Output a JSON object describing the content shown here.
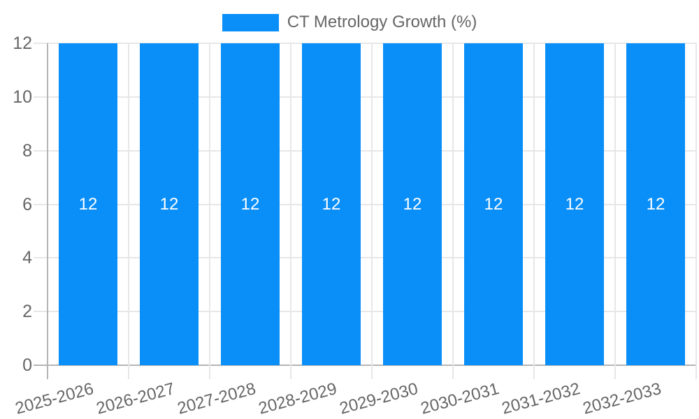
{
  "chart_data": {
    "type": "bar",
    "legend_entries": [
      "CT Metrology Growth (%)"
    ],
    "legend_position": "top",
    "categories": [
      "2025-2026",
      "2026-2027",
      "2027-2028",
      "2028-2029",
      "2029-2030",
      "2030-2031",
      "2031-2032",
      "2032-2033"
    ],
    "series": [
      {
        "name": "CT Metrology Growth (%)",
        "values": [
          12,
          12,
          12,
          12,
          12,
          12,
          12,
          12
        ]
      }
    ],
    "value_labels": [
      "12",
      "12",
      "12",
      "12",
      "12",
      "12",
      "12",
      "12"
    ],
    "xlabel": "",
    "ylabel": "",
    "ylim": [
      0,
      12
    ],
    "yticks": [
      0,
      2,
      4,
      6,
      8,
      10,
      12
    ],
    "grid": "on",
    "x_label_rotation_deg": -15,
    "colors": {
      "bar": "#0a8ff8",
      "grid": "#e7e7e7",
      "axis": "#b5b5b5",
      "text": "#666666",
      "value_label": "#ffffff",
      "background": "#ffffff"
    }
  }
}
